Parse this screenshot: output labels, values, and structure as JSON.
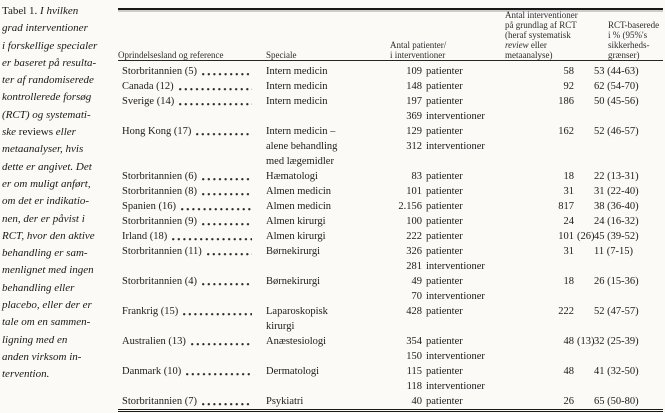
{
  "document": {
    "kind": "journal-table-scan",
    "language": "da",
    "background_color": "#fbfaf7",
    "text_color": "#1b1b1b"
  },
  "caption": {
    "lead": "Tabel 1.",
    "roman_words": [
      "reviews"
    ],
    "lines": [
      "I hvilken",
      "grad interventioner",
      "i forskellige specialer",
      "er baseret på resulta-",
      "ter af randomiserede",
      "kontrollerede forsøg",
      "(RCT) og systemati-",
      "ske reviews eller",
      "metaanalyser, hvis",
      "dette er angivet. Det",
      "er om muligt anført,",
      "om det er indikatio-",
      "nen, der er påvist i",
      "RCT, hvor den aktive",
      "behandling er sam-",
      "menlignet med ingen",
      "behandling eller",
      "placebo, eller der er",
      "tale om en sammen-",
      "ligning med en",
      "anden virksom in-",
      "tervention."
    ]
  },
  "table": {
    "columns": [
      {
        "id": "oprindelsesland-og-reference",
        "lines": [
          "Oprindelsesland og reference"
        ]
      },
      {
        "id": "speciale",
        "lines": [
          "Speciale"
        ]
      },
      {
        "id": "antal-patienter-interventioner",
        "lines": [
          "Antal patienter/",
          "i interventioner"
        ]
      },
      {
        "id": "antal-interventioner-rct",
        "lines": [
          "Antal interventioner",
          "på grundlag af RCT",
          "(heraf systematisk",
          [
            {
              "t": "review",
              "it": true
            },
            {
              "t": " eller"
            }
          ],
          "metaanalyse)"
        ]
      },
      {
        "id": "rct-baserede-pct",
        "lines": [
          "RCT-baserede",
          "i % (95%'s",
          "sikkerheds-",
          "grænser)"
        ]
      }
    ],
    "rows": [
      {
        "country": "Storbritannien (5)",
        "speciale": [
          "Intern medicin"
        ],
        "patients": [
          {
            "num": "109",
            "unit": "patienter"
          }
        ],
        "rct_num": "58",
        "rct_paren": "",
        "pct": "53 (44-63)"
      },
      {
        "country": "Canada (12)",
        "speciale": [
          "Intern medicin"
        ],
        "patients": [
          {
            "num": "148",
            "unit": "patienter"
          }
        ],
        "rct_num": "92",
        "rct_paren": "",
        "pct": "62 (54-70)"
      },
      {
        "country": "Sverige (14)",
        "speciale": [
          "Intern medicin"
        ],
        "patients": [
          {
            "num": "197",
            "unit": "patienter"
          },
          {
            "num": "369",
            "unit": "interventioner"
          }
        ],
        "rct_num": "186",
        "rct_paren": "",
        "pct": "50 (45-56)"
      },
      {
        "country": "Hong Kong (17)",
        "speciale": [
          "Intern medicin –",
          "alene behandling",
          "med lægemidler"
        ],
        "patients": [
          {
            "num": "129",
            "unit": "patienter"
          },
          {
            "num": "312",
            "unit": "interventioner"
          }
        ],
        "rct_num": "162",
        "rct_paren": "",
        "pct": "52 (46-57)"
      },
      {
        "country": "Storbritannien (6)",
        "speciale": [
          "Hæmatologi"
        ],
        "patients": [
          {
            "num": "83",
            "unit": "patienter"
          }
        ],
        "rct_num": "18",
        "rct_paren": "",
        "pct": "22 (13-31)"
      },
      {
        "country": "Storbritannien (8)",
        "speciale": [
          "Almen medicin"
        ],
        "patients": [
          {
            "num": "101",
            "unit": "patienter"
          }
        ],
        "rct_num": "31",
        "rct_paren": "",
        "pct": "31 (22-40)"
      },
      {
        "country": "Spanien (16)",
        "speciale": [
          "Almen medicin"
        ],
        "patients": [
          {
            "num": "2.156",
            "unit": "patienter"
          }
        ],
        "rct_num": "817",
        "rct_paren": "",
        "pct": "38 (36-40)"
      },
      {
        "country": "Storbritannien (9)",
        "speciale": [
          "Almen kirurgi"
        ],
        "patients": [
          {
            "num": "100",
            "unit": "patienter"
          }
        ],
        "rct_num": "24",
        "rct_paren": "",
        "pct": "24 (16-32)"
      },
      {
        "country": "Irland (18)",
        "speciale": [
          "Almen kirurgi"
        ],
        "patients": [
          {
            "num": "222",
            "unit": "patienter"
          }
        ],
        "rct_num": "101",
        "rct_paren": "(26)",
        "pct": "45 (39-52)"
      },
      {
        "country": "Storbritannien (11)",
        "speciale": [
          "Børnekirurgi"
        ],
        "patients": [
          {
            "num": "326",
            "unit": "patienter"
          },
          {
            "num": "281",
            "unit": "interventioner"
          }
        ],
        "rct_num": "31",
        "rct_paren": "",
        "pct": "11 (7-15)"
      },
      {
        "country": "Storbritannien (4)",
        "speciale": [
          "Børnekirurgi"
        ],
        "patients": [
          {
            "num": "49",
            "unit": "patienter"
          },
          {
            "num": "70",
            "unit": "interventioner"
          }
        ],
        "rct_num": "18",
        "rct_paren": "",
        "pct": "26 (15-36)"
      },
      {
        "country": "Frankrig (15)",
        "speciale": [
          "Laparoskopisk",
          "kirurgi"
        ],
        "patients": [
          {
            "num": "428",
            "unit": "patienter"
          }
        ],
        "rct_num": "222",
        "rct_paren": "",
        "pct": "52 (47-57)"
      },
      {
        "country": "Australien (13)",
        "speciale": [
          "Anæstesiologi"
        ],
        "patients": [
          {
            "num": "354",
            "unit": "patienter"
          },
          {
            "num": "150",
            "unit": "interventioner"
          }
        ],
        "rct_num": "48",
        "rct_paren": "(13)",
        "pct": "32 (25-39)"
      },
      {
        "country": "Danmark (10)",
        "speciale": [
          "Dermatologi"
        ],
        "patients": [
          {
            "num": "115",
            "unit": "patienter"
          },
          {
            "num": "118",
            "unit": "interventioner"
          }
        ],
        "rct_num": "48",
        "rct_paren": "",
        "pct": "41 (32-50)"
      },
      {
        "country": "Storbritannien (7)",
        "speciale": [
          "Psykiatri"
        ],
        "patients": [
          {
            "num": "40",
            "unit": "patienter"
          }
        ],
        "rct_num": "26",
        "rct_paren": "",
        "pct": "65 (50-80)"
      }
    ]
  }
}
